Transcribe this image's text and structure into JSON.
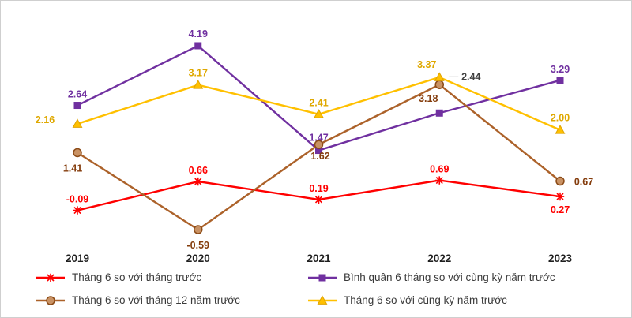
{
  "chart_data": {
    "type": "line",
    "title": "",
    "categories": [
      "2019",
      "2020",
      "2021",
      "2022",
      "2023"
    ],
    "ylim": [
      -1.2,
      4.8
    ],
    "grid": false,
    "legend_position": "bottom",
    "value_labels_decimals": 2,
    "series": [
      {
        "name": "Tháng 6 so với tháng trước",
        "marker": "asterisk",
        "color": "#FF0000",
        "marker_fill": "#FF0000",
        "marker_stroke": "#FF0000",
        "label_color": "#FF0000",
        "values": [
          -0.09,
          0.66,
          0.19,
          0.69,
          0.27
        ]
      },
      {
        "name": "Bình quân 6 tháng so với cùng kỳ năm trước",
        "marker": "square",
        "color": "#7030A0",
        "marker_fill": "#7030A0",
        "marker_stroke": "#5B2583",
        "label_color": "#7030A0",
        "values": [
          2.64,
          4.19,
          1.47,
          2.44,
          3.29
        ]
      },
      {
        "name": "Tháng 6 so với tháng 12 năm trước",
        "marker": "circle",
        "color": "#AC622A",
        "marker_fill": "#C99264",
        "marker_stroke": "#8C4B17",
        "label_color": "#843C0C",
        "values": [
          1.41,
          -0.59,
          1.62,
          3.18,
          0.67
        ]
      },
      {
        "name": "Tháng 6 so với cùng kỳ năm trước",
        "marker": "triangle",
        "color": "#FFC000",
        "marker_fill": "#FFC000",
        "marker_stroke": "#DFA300",
        "label_color": "#DFA800",
        "values": [
          2.16,
          3.17,
          2.41,
          3.37,
          2.0
        ]
      }
    ],
    "label_color_overrides": [
      {
        "series_index": 1,
        "point_index": 3,
        "color": "#404040"
      }
    ]
  }
}
